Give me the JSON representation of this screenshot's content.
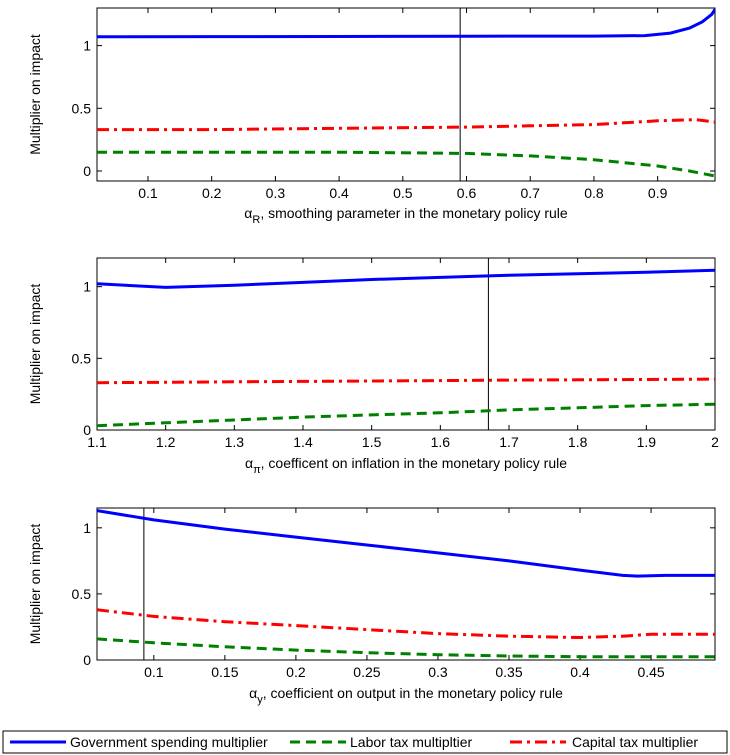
{
  "colors": {
    "government": "#0000ff",
    "labor": "#008000",
    "capital": "#ff0000",
    "axis": "#000000"
  },
  "legend": {
    "placement": "bottom",
    "items": [
      {
        "label": "Government spending multiplier",
        "color": "#0000ff",
        "style": "solid"
      },
      {
        "label": "Labor tax multipltier",
        "color": "#008000",
        "style": "dashed"
      },
      {
        "label": "Capital tax multiplier",
        "color": "#ff0000",
        "style": "dashdot"
      }
    ]
  },
  "chart_data": [
    {
      "type": "line",
      "ylabel": "Multiplier on impact",
      "xlabel_symbol": "α",
      "xlabel_sub": "R",
      "xlabel_rest": ", smoothing parameter in the monetary policy rule",
      "xlim": [
        0.02,
        0.99
      ],
      "ylim": [
        -0.08,
        1.3
      ],
      "xticks": [
        "0.1",
        "0.2",
        "0.3",
        "0.4",
        "0.5",
        "0.6",
        "0.7",
        "0.8",
        "0.9"
      ],
      "yticks": [
        "0",
        "0.5",
        "1"
      ],
      "vline": 0.59,
      "grid": false,
      "series": [
        {
          "name": "Government spending multiplier",
          "style": "solid",
          "x": [
            0.02,
            0.2,
            0.4,
            0.6,
            0.8,
            0.88,
            0.92,
            0.95,
            0.97,
            0.985,
            0.99
          ],
          "y": [
            1.07,
            1.072,
            1.073,
            1.075,
            1.076,
            1.08,
            1.1,
            1.14,
            1.19,
            1.25,
            1.29
          ]
        },
        {
          "name": "Labor tax multipltier",
          "style": "dashed",
          "x": [
            0.02,
            0.2,
            0.4,
            0.6,
            0.7,
            0.8,
            0.9,
            0.95,
            0.99
          ],
          "y": [
            0.15,
            0.15,
            0.15,
            0.14,
            0.12,
            0.09,
            0.04,
            0.0,
            -0.04
          ]
        },
        {
          "name": "Capital tax multiplier",
          "style": "dashdot",
          "x": [
            0.02,
            0.2,
            0.4,
            0.6,
            0.7,
            0.8,
            0.9,
            0.96,
            0.99
          ],
          "y": [
            0.33,
            0.33,
            0.34,
            0.35,
            0.36,
            0.37,
            0.4,
            0.41,
            0.39
          ]
        }
      ]
    },
    {
      "type": "line",
      "ylabel": "Multiplier on impact",
      "xlabel_symbol": "α",
      "xlabel_sub": "π",
      "xlabel_rest": ", coefficent on inflation in the monetary policy rule",
      "xlim": [
        1.1,
        2.0
      ],
      "ylim": [
        0,
        1.2
      ],
      "xticks": [
        "1.1",
        "1.2",
        "1.3",
        "1.4",
        "1.5",
        "1.6",
        "1.7",
        "1.8",
        "1.9",
        "2"
      ],
      "yticks": [
        "0",
        "0.5",
        "1"
      ],
      "vline": 1.67,
      "grid": false,
      "series": [
        {
          "name": "Government spending multiplier",
          "style": "solid",
          "x": [
            1.1,
            1.2,
            1.3,
            1.4,
            1.5,
            1.6,
            1.7,
            1.8,
            1.9,
            2.0
          ],
          "y": [
            1.02,
            0.995,
            1.01,
            1.03,
            1.05,
            1.065,
            1.08,
            1.09,
            1.1,
            1.115
          ]
        },
        {
          "name": "Labor tax multipltier",
          "style": "dashed",
          "x": [
            1.1,
            1.2,
            1.3,
            1.4,
            1.5,
            1.6,
            1.7,
            1.8,
            1.9,
            2.0
          ],
          "y": [
            0.03,
            0.05,
            0.07,
            0.09,
            0.105,
            0.12,
            0.14,
            0.155,
            0.17,
            0.18
          ]
        },
        {
          "name": "Capital tax multiplier",
          "style": "dashdot",
          "x": [
            1.1,
            1.2,
            1.3,
            1.4,
            1.5,
            1.6,
            1.7,
            1.8,
            1.9,
            2.0
          ],
          "y": [
            0.33,
            0.333,
            0.336,
            0.339,
            0.342,
            0.345,
            0.348,
            0.35,
            0.352,
            0.355
          ]
        }
      ]
    },
    {
      "type": "line",
      "ylabel": "Multiplier on impact",
      "xlabel_symbol": "α",
      "xlabel_sub": "y",
      "xlabel_rest": ", coefficient on output in the monetary policy rule",
      "xlim": [
        0.06,
        0.495
      ],
      "ylim": [
        0,
        1.15
      ],
      "xticks": [
        "0.1",
        "0.15",
        "0.2",
        "0.25",
        "0.3",
        "0.35",
        "0.4",
        "0.45"
      ],
      "yticks": [
        "0",
        "0.5",
        "1"
      ],
      "vline": 0.093,
      "grid": false,
      "series": [
        {
          "name": "Government spending multiplier",
          "style": "solid",
          "x": [
            0.06,
            0.1,
            0.15,
            0.2,
            0.25,
            0.3,
            0.35,
            0.4,
            0.43,
            0.44,
            0.46,
            0.495
          ],
          "y": [
            1.13,
            1.06,
            0.99,
            0.93,
            0.87,
            0.81,
            0.75,
            0.68,
            0.64,
            0.635,
            0.64,
            0.64
          ]
        },
        {
          "name": "Labor tax multipltier",
          "style": "dashed",
          "x": [
            0.06,
            0.1,
            0.15,
            0.2,
            0.25,
            0.3,
            0.35,
            0.4,
            0.45,
            0.495
          ],
          "y": [
            0.16,
            0.13,
            0.1,
            0.075,
            0.055,
            0.04,
            0.03,
            0.025,
            0.025,
            0.025
          ]
        },
        {
          "name": "Capital tax multiplier",
          "style": "dashdot",
          "x": [
            0.06,
            0.1,
            0.15,
            0.2,
            0.25,
            0.3,
            0.35,
            0.4,
            0.43,
            0.45,
            0.495
          ],
          "y": [
            0.38,
            0.33,
            0.29,
            0.26,
            0.23,
            0.2,
            0.18,
            0.17,
            0.18,
            0.195,
            0.195
          ]
        }
      ]
    }
  ]
}
